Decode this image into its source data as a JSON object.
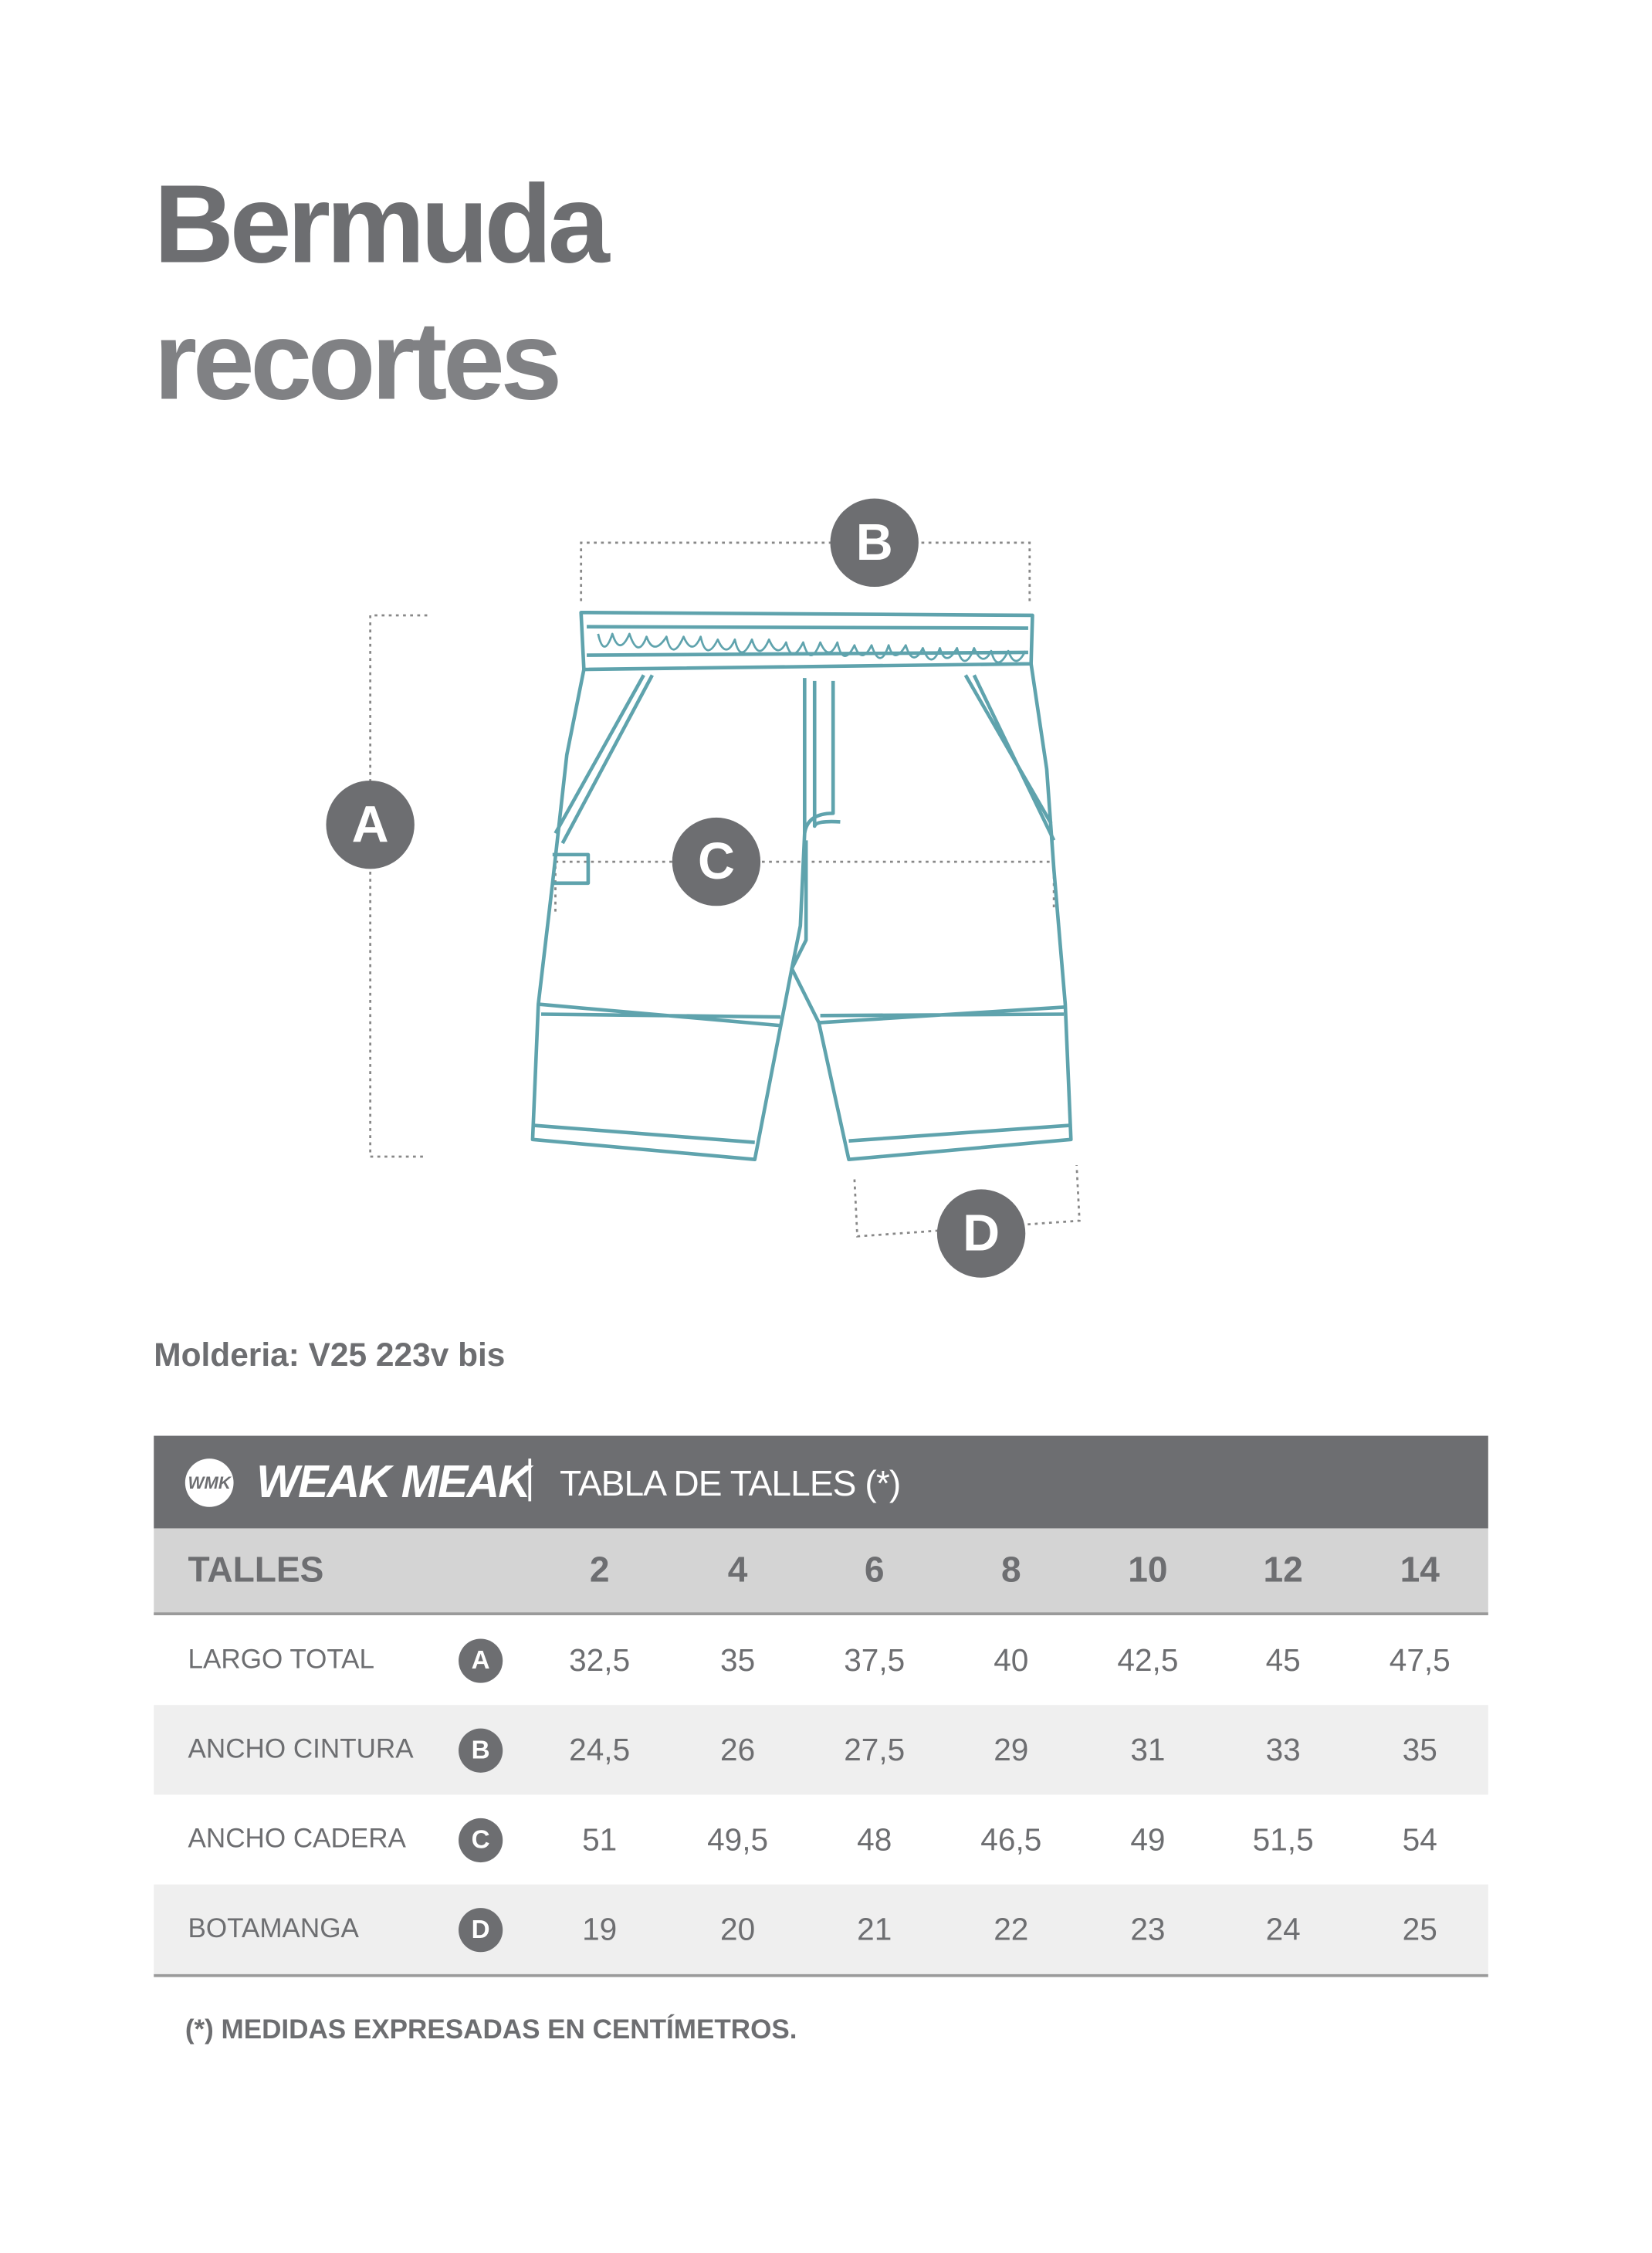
{
  "title_line1": "Bermuda",
  "title_line2": "recortes",
  "measure_labels": [
    "A",
    "B",
    "C",
    "D"
  ],
  "molderia": "Molderia: V25 223v bis",
  "colors": {
    "gray": "#6d6e71",
    "drawing": "#5fa3ad",
    "subheader": "#d4d4d4",
    "alt_row": "#efefef"
  },
  "table": {
    "brand": "WEAK MEAK",
    "brand_mark": "WMK",
    "title": "TABLA DE TALLES (*)",
    "header_label": "TALLES",
    "sizes": [
      "2",
      "4",
      "6",
      "8",
      "10",
      "12",
      "14"
    ],
    "rows": [
      {
        "label": "LARGO TOTAL",
        "badge": "A",
        "values": [
          "32,5",
          "35",
          "37,5",
          "40",
          "42,5",
          "45",
          "47,5"
        ]
      },
      {
        "label": "ANCHO CINTURA",
        "badge": "B",
        "values": [
          "24,5",
          "26",
          "27,5",
          "29",
          "31",
          "33",
          "35"
        ]
      },
      {
        "label": "ANCHO CADERA",
        "badge": "C",
        "values": [
          "51",
          "49,5",
          "48",
          "46,5",
          "49",
          "51,5",
          "54"
        ]
      },
      {
        "label": "BOTAMANGA",
        "badge": "D",
        "values": [
          "19",
          "20",
          "21",
          "22",
          "23",
          "24",
          "25"
        ]
      }
    ]
  },
  "note": "(*) MEDIDAS EXPRESADAS EN CENTÍMETROS."
}
